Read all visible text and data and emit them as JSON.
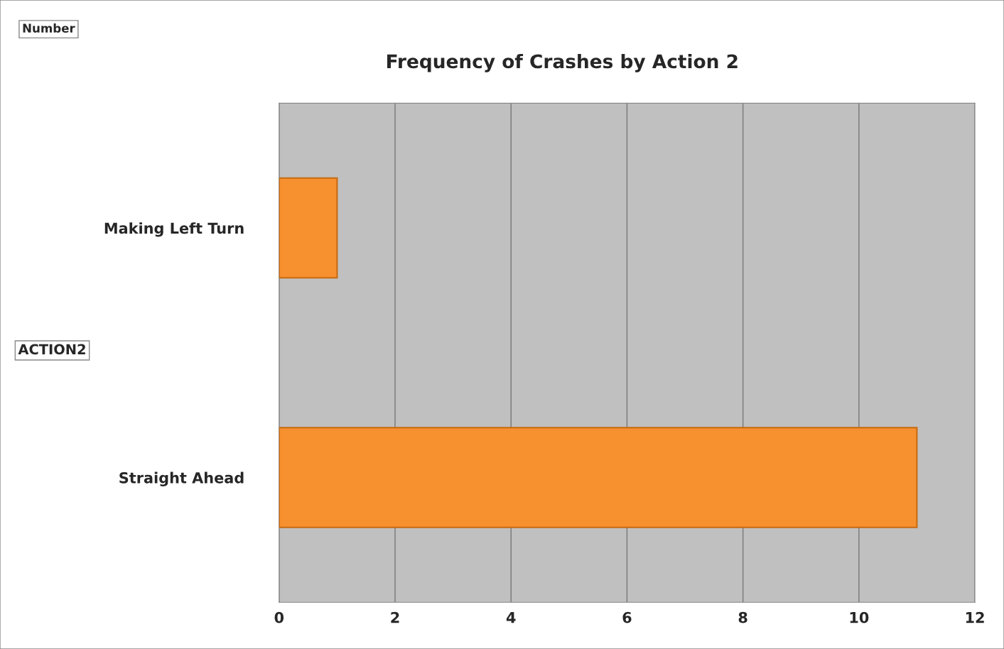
{
  "chart_data": {
    "type": "bar",
    "orientation": "horizontal",
    "title": "Frequency of Crashes by Action 2",
    "categories": [
      "Making Left Turn",
      "Straight Ahead"
    ],
    "values": [
      1,
      11
    ],
    "color": "#f7902e",
    "xlim": [
      0,
      12
    ],
    "xticks": [
      0,
      2,
      4,
      6,
      8,
      10,
      12
    ],
    "grid": "x",
    "annotations": [
      "Number",
      "ACTION2"
    ]
  }
}
